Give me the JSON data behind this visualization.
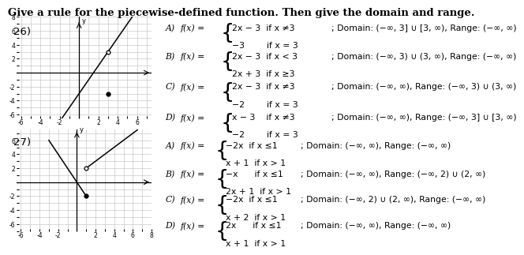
{
  "title": "Give a rule for the piecewise-defined function. Then give the domain and range.",
  "background_color": "#ffffff",
  "q26_label": "26)",
  "q27_label": "27)",
  "graph_color": "#bbbbbb",
  "dot_color": "#000000",
  "line_color": "#000000",
  "axis_color": "#000000",
  "text_color": "#000000",
  "q26_rows": [
    {
      "label": "A)",
      "fx": "f(x) =",
      "top": "2x − 3  if x ≠3",
      "bot": "−3        if x = 3",
      "dr": "; Domain: (−∞, 3] ∪ [3, ∞), Range: (−∞, ∞)"
    },
    {
      "label": "B)",
      "fx": "f(x) =",
      "top": "2x − 3  if x < 3",
      "bot": "2x + 3  if x ≥3",
      "dr": "; Domain: (−∞, 3) ∪ (3, ∞), Range: (−∞, ∞)"
    },
    {
      "label": "C)",
      "fx": "f(x) =",
      "top": "2x − 3  if x ≠3",
      "bot": "−2        if x = 3",
      "dr": "; Domain: (−∞, ∞), Range: (−∞, 3) ∪ (3, ∞)"
    },
    {
      "label": "D)",
      "fx": "f(x) =",
      "top": "x − 3    if x ≠3",
      "bot": "−2        if x = 3",
      "dr": "; Domain: (−∞, ∞), Range: (−∞, 3] ∪ [3, ∞)"
    }
  ],
  "q27_rows": [
    {
      "label": "A)",
      "fx": "f(x) =",
      "top": "−2x  if x ≤1",
      "bot": "x + 1  if x > 1",
      "dr": "; Domain: (−∞, ∞), Range: (−∞, ∞)"
    },
    {
      "label": "B)",
      "fx": "f(x) =",
      "top": "−x      if x ≤1",
      "bot": "2x + 1  if x > 1",
      "dr": "; Domain: (−∞, ∞), Range: (−∞, 2) ∪ (2, ∞)"
    },
    {
      "label": "C)",
      "fx": "f(x) =",
      "top": "−2x  if x ≤1",
      "bot": "x + 2  if x > 1",
      "dr": "; Domain: (−∞, 2) ∪ (2, ∞), Range: (−∞, ∞)"
    },
    {
      "label": "D)",
      "fx": "f(x) =",
      "top": "2x      if x ≤1",
      "bot": "x + 1  if x > 1",
      "dr": "; Domain: (−∞, ∞), Range: (−∞, ∞)"
    }
  ]
}
